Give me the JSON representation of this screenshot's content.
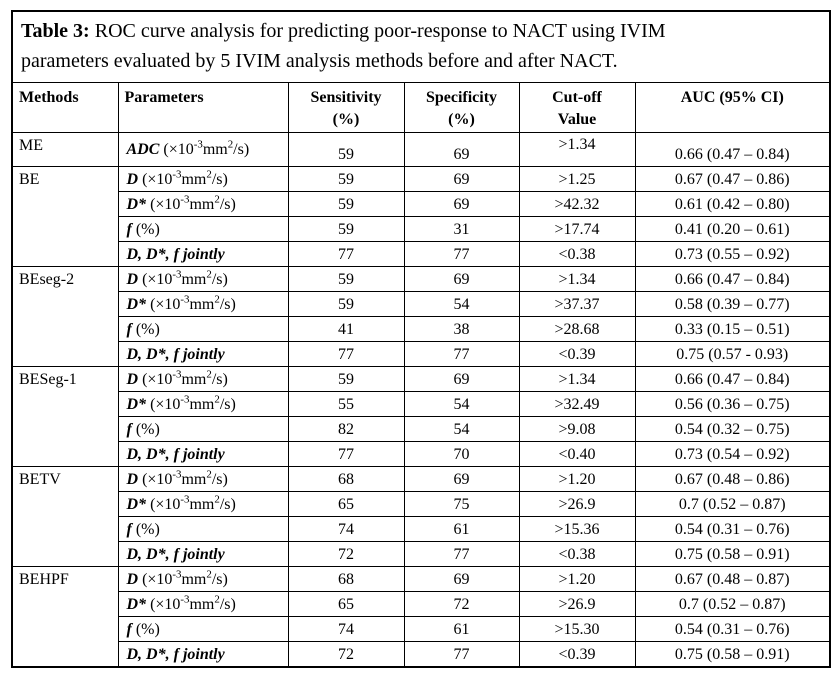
{
  "title": {
    "label": "Table 3:",
    "line1": "ROC curve analysis for predicting poor-response to NACT using IVIM",
    "line2": "parameters evaluated by 5 IVIM analysis methods before and after NACT."
  },
  "columns": [
    {
      "line1": "Methods",
      "line2": ""
    },
    {
      "line1": "Parameters",
      "line2": ""
    },
    {
      "line1": "Sensitivity",
      "line2": "(%)"
    },
    {
      "line1": "Specificity",
      "line2": "(%)"
    },
    {
      "line1": "Cut-off",
      "line2": "Value"
    },
    {
      "line1": "AUC (95% CI)",
      "line2": ""
    }
  ],
  "groups": [
    {
      "method": "ME",
      "rows": [
        {
          "param": [
            {
              "t": "ADC ",
              "s": "bi"
            },
            {
              "t": "(×10",
              "s": "n"
            },
            {
              "t": "-3",
              "s": "sup"
            },
            {
              "t": "mm",
              "s": "n"
            },
            {
              "t": "2",
              "s": "sup"
            },
            {
              "t": "/s)",
              "s": "n"
            }
          ],
          "sens": "59",
          "spec": "69",
          "cutoff": ">1.34",
          "auc": "0.66 (0.47 – 0.84)"
        }
      ]
    },
    {
      "method": "BE",
      "rows": [
        {
          "param": [
            {
              "t": "D ",
              "s": "bi"
            },
            {
              "t": "(×10",
              "s": "n"
            },
            {
              "t": "-3",
              "s": "sup"
            },
            {
              "t": "mm",
              "s": "n"
            },
            {
              "t": "2",
              "s": "sup"
            },
            {
              "t": "/s)",
              "s": "n"
            }
          ],
          "sens": "59",
          "spec": "69",
          "cutoff": ">1.25",
          "auc": "0.67 (0.47 – 0.86)"
        },
        {
          "param": [
            {
              "t": "D* ",
              "s": "bi"
            },
            {
              "t": "(×10",
              "s": "n"
            },
            {
              "t": "-3",
              "s": "sup"
            },
            {
              "t": "mm",
              "s": "n"
            },
            {
              "t": "2",
              "s": "sup"
            },
            {
              "t": "/s)",
              "s": "n"
            }
          ],
          "sens": "59",
          "spec": "69",
          "cutoff": ">42.32",
          "auc": "0.61 (0.42 – 0.80)"
        },
        {
          "param": [
            {
              "t": "f ",
              "s": "bi"
            },
            {
              "t": "(%)",
              "s": "n"
            }
          ],
          "sens": "59",
          "spec": "31",
          "cutoff": ">17.74",
          "auc": "0.41 (0.20 – 0.61)"
        },
        {
          "param": [
            {
              "t": "D, D*, f jointly",
              "s": "bi"
            }
          ],
          "sens": "77",
          "spec": "77",
          "cutoff": "<0.38",
          "auc": "0.73 (0.55 – 0.92)"
        }
      ]
    },
    {
      "method": "BEseg-2",
      "rows": [
        {
          "param": [
            {
              "t": "D ",
              "s": "bi"
            },
            {
              "t": "(×10",
              "s": "n"
            },
            {
              "t": "-3",
              "s": "sup"
            },
            {
              "t": "mm",
              "s": "n"
            },
            {
              "t": "2",
              "s": "sup"
            },
            {
              "t": "/s)",
              "s": "n"
            }
          ],
          "sens": "59",
          "spec": "69",
          "cutoff": ">1.34",
          "auc": "0.66 (0.47 – 0.84)"
        },
        {
          "param": [
            {
              "t": "D* ",
              "s": "bi"
            },
            {
              "t": "(×10",
              "s": "n"
            },
            {
              "t": "-3",
              "s": "sup"
            },
            {
              "t": "mm",
              "s": "n"
            },
            {
              "t": "2",
              "s": "sup"
            },
            {
              "t": "/s)",
              "s": "n"
            }
          ],
          "sens": "59",
          "spec": "54",
          "cutoff": ">37.37",
          "auc": "0.58 (0.39 – 0.77)"
        },
        {
          "param": [
            {
              "t": "f ",
              "s": "bi"
            },
            {
              "t": "(%)",
              "s": "n"
            }
          ],
          "sens": "41",
          "spec": "38",
          "cutoff": ">28.68",
          "auc": "0.33 (0.15 – 0.51)"
        },
        {
          "param": [
            {
              "t": "D, D*, f jointly",
              "s": "bi"
            }
          ],
          "sens": "77",
          "spec": "77",
          "cutoff": "<0.39",
          "auc": "0.75 (0.57 - 0.93)"
        }
      ]
    },
    {
      "method": "BESeg-1",
      "rows": [
        {
          "param": [
            {
              "t": "D ",
              "s": "bi"
            },
            {
              "t": "(×10",
              "s": "n"
            },
            {
              "t": "-3",
              "s": "sup"
            },
            {
              "t": "mm",
              "s": "n"
            },
            {
              "t": "2",
              "s": "sup"
            },
            {
              "t": "/s)",
              "s": "n"
            }
          ],
          "sens": "59",
          "spec": "69",
          "cutoff": ">1.34",
          "auc": "0.66 (0.47 – 0.84)"
        },
        {
          "param": [
            {
              "t": "D* ",
              "s": "bi"
            },
            {
              "t": "(×10",
              "s": "n"
            },
            {
              "t": "-3",
              "s": "sup"
            },
            {
              "t": "mm",
              "s": "n"
            },
            {
              "t": "2",
              "s": "sup"
            },
            {
              "t": "/s)",
              "s": "n"
            }
          ],
          "sens": "55",
          "spec": "54",
          "cutoff": ">32.49",
          "auc": "0.56 (0.36 – 0.75)"
        },
        {
          "param": [
            {
              "t": "f ",
              "s": "bi"
            },
            {
              "t": "(%)",
              "s": "n"
            }
          ],
          "sens": "82",
          "spec": "54",
          "cutoff": ">9.08",
          "auc": "0.54 (0.32 – 0.75)"
        },
        {
          "param": [
            {
              "t": "D, D*, f jointly",
              "s": "bi"
            }
          ],
          "sens": "77",
          "spec": "70",
          "cutoff": "<0.40",
          "auc": "0.73 (0.54 – 0.92)"
        }
      ]
    },
    {
      "method": "BETV",
      "rows": [
        {
          "param": [
            {
              "t": "D ",
              "s": "bi"
            },
            {
              "t": "(×10",
              "s": "n"
            },
            {
              "t": "-3",
              "s": "sup"
            },
            {
              "t": "mm",
              "s": "n"
            },
            {
              "t": "2",
              "s": "sup"
            },
            {
              "t": "/s)",
              "s": "n"
            }
          ],
          "sens": "68",
          "spec": "69",
          "cutoff": ">1.20",
          "auc": "0.67 (0.48 – 0.86)"
        },
        {
          "param": [
            {
              "t": "D* ",
              "s": "bi"
            },
            {
              "t": "(×10",
              "s": "n"
            },
            {
              "t": "-3",
              "s": "sup"
            },
            {
              "t": "mm",
              "s": "n"
            },
            {
              "t": "2",
              "s": "sup"
            },
            {
              "t": "/s)",
              "s": "n"
            }
          ],
          "sens": "65",
          "spec": "75",
          "cutoff": ">26.9",
          "auc": "0.7 (0.52 – 0.87)"
        },
        {
          "param": [
            {
              "t": "f ",
              "s": "bi"
            },
            {
              "t": "(%)",
              "s": "n"
            }
          ],
          "sens": "74",
          "spec": "61",
          "cutoff": ">15.36",
          "auc": "0.54 (0.31 – 0.76)"
        },
        {
          "param": [
            {
              "t": "D, D*, f jointly",
              "s": "bi"
            }
          ],
          "sens": "72",
          "spec": "77",
          "cutoff": "<0.38",
          "auc": "0.75 (0.58 – 0.91)"
        }
      ]
    },
    {
      "method": "BEHPF",
      "rows": [
        {
          "param": [
            {
              "t": "D ",
              "s": "bi"
            },
            {
              "t": "(×10",
              "s": "n"
            },
            {
              "t": "-3",
              "s": "sup"
            },
            {
              "t": "mm",
              "s": "n"
            },
            {
              "t": "2",
              "s": "sup"
            },
            {
              "t": "/s)",
              "s": "n"
            }
          ],
          "sens": "68",
          "spec": "69",
          "cutoff": ">1.20",
          "auc": "0.67 (0.48 – 0.87)"
        },
        {
          "param": [
            {
              "t": "D* ",
              "s": "bi"
            },
            {
              "t": "(×10",
              "s": "n"
            },
            {
              "t": "-3",
              "s": "sup"
            },
            {
              "t": "mm",
              "s": "n"
            },
            {
              "t": "2",
              "s": "sup"
            },
            {
              "t": "/s)",
              "s": "n"
            }
          ],
          "sens": "65",
          "spec": "72",
          "cutoff": ">26.9",
          "auc": "0.7 (0.52 – 0.87)"
        },
        {
          "param": [
            {
              "t": "f ",
              "s": "bi"
            },
            {
              "t": "(%)",
              "s": "n"
            }
          ],
          "sens": "74",
          "spec": "61",
          "cutoff": ">15.30",
          "auc": "0.54 (0.31 – 0.76)"
        },
        {
          "param": [
            {
              "t": "D, D*, f jointly",
              "s": "bi"
            }
          ],
          "sens": "72",
          "spec": "77",
          "cutoff": "<0.39",
          "auc": "0.75 (0.58 – 0.91)"
        }
      ]
    }
  ]
}
